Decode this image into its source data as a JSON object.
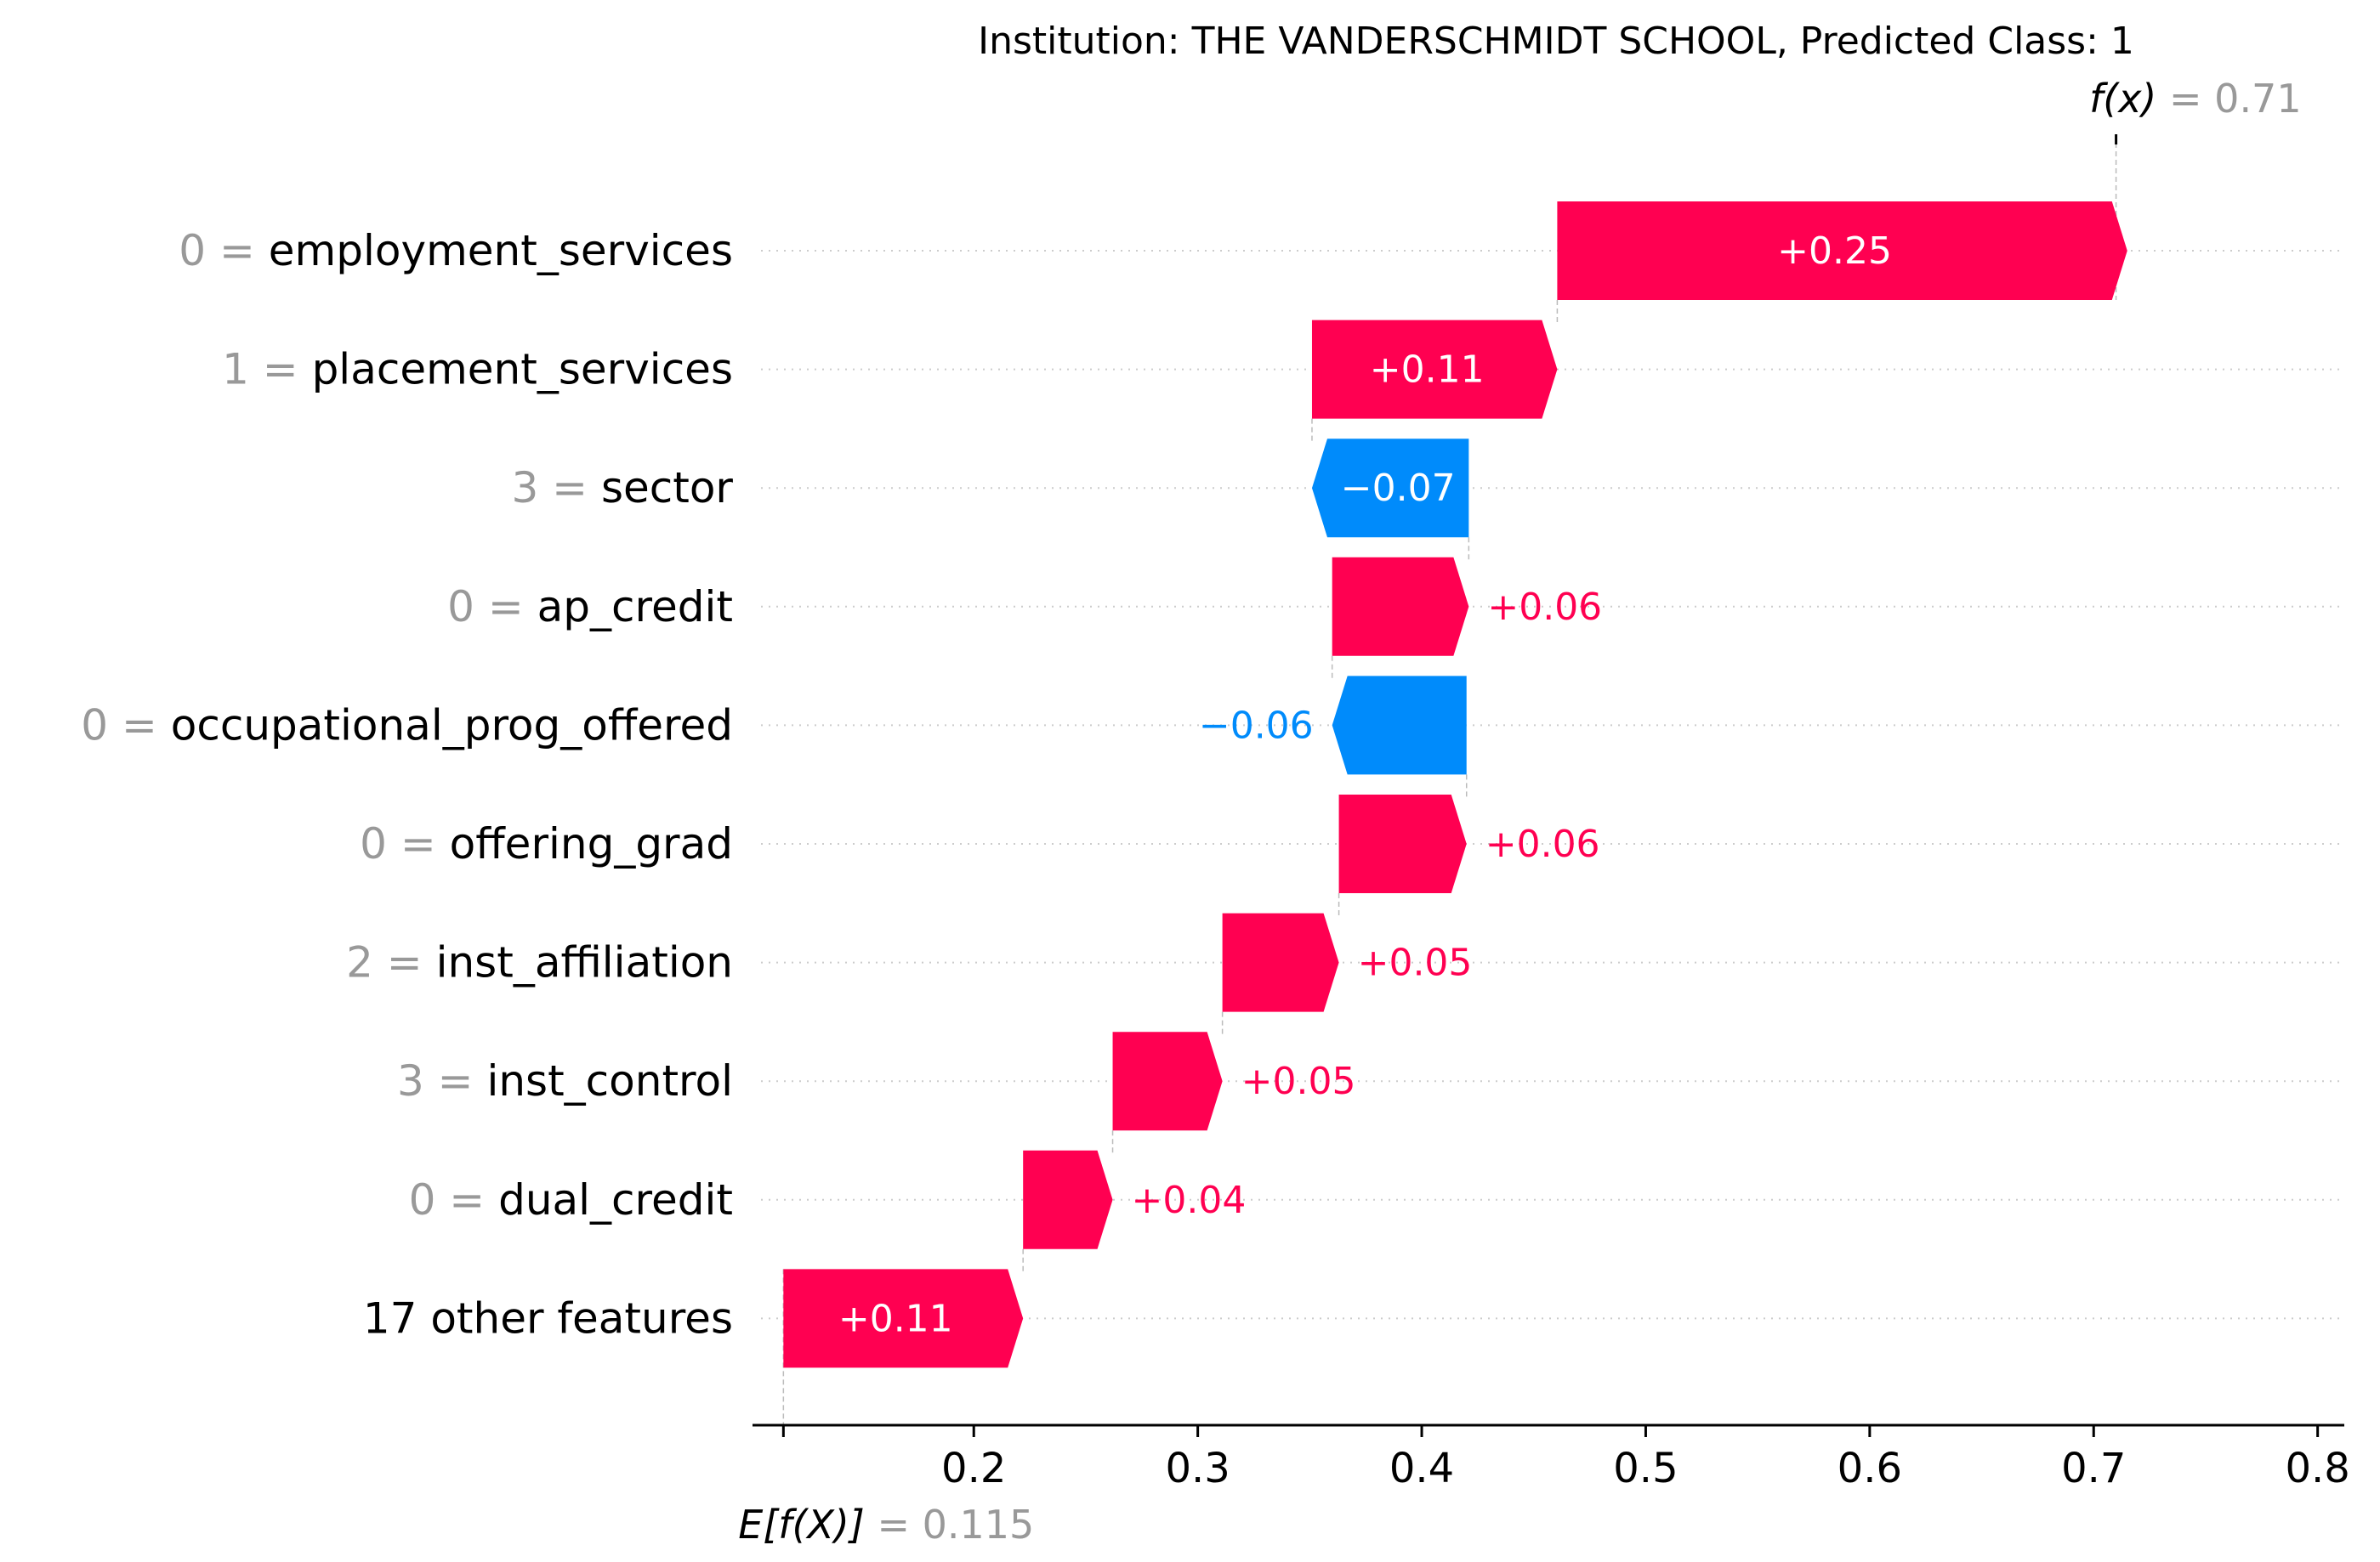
{
  "chart_data": {
    "type": "waterfall",
    "title": "Institution: THE VANDERSCHMIDT SCHOOL, Predicted Class: 1",
    "fx_label": "f(x)",
    "fx_value": "0.71",
    "base_label": "E[f(X)]",
    "base_value": "0.115",
    "base": 0.115,
    "fx": 0.71,
    "xlim": [
      0.105,
      0.81
    ],
    "x_ticks": [
      0.2,
      0.3,
      0.4,
      0.5,
      0.6,
      0.7,
      0.8
    ],
    "x_tick_labels": [
      "0.2",
      "0.3",
      "0.4",
      "0.5",
      "0.6",
      "0.7",
      "0.8"
    ],
    "grid": "horizontal-dotted",
    "features": [
      {
        "value": "0",
        "name": "employment_services",
        "contribution": 0.2545,
        "label": "+0.25"
      },
      {
        "value": "1",
        "name": "placement_services",
        "contribution": 0.1095,
        "label": "+0.11"
      },
      {
        "value": "3",
        "name": "sector",
        "contribution": -0.07,
        "label": "−0.07"
      },
      {
        "value": "0",
        "name": "ap_credit",
        "contribution": 0.061,
        "label": "+0.06"
      },
      {
        "value": "0",
        "name": "occupational_prog_offered",
        "contribution": -0.06,
        "label": "−0.06"
      },
      {
        "value": "0",
        "name": "offering_grad",
        "contribution": 0.057,
        "label": "+0.06"
      },
      {
        "value": "2",
        "name": "inst_affiliation",
        "contribution": 0.052,
        "label": "+0.05"
      },
      {
        "value": "3",
        "name": "inst_control",
        "contribution": 0.049,
        "label": "+0.05"
      },
      {
        "value": "0",
        "name": "dual_credit",
        "contribution": 0.04,
        "label": "+0.04"
      },
      {
        "value": "",
        "name": "17 other features",
        "contribution": 0.107,
        "label": "+0.11"
      }
    ],
    "colors": {
      "positive": "#ff0051",
      "negative": "#008bfb",
      "muted": "#999999",
      "text": "#000000"
    }
  }
}
